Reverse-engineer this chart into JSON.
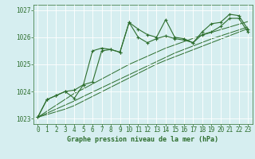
{
  "title": "Graphe pression niveau de la mer (hPa)",
  "bg_color": "#cce8ec",
  "grid_color": "#b0d8dc",
  "plot_bg_color": "#d6eef0",
  "line_color": "#2d6e2d",
  "marker_color": "#2d6e2d",
  "label_color": "#2d6e2d",
  "x_ticks": [
    0,
    1,
    2,
    3,
    4,
    5,
    6,
    7,
    8,
    9,
    10,
    11,
    12,
    13,
    14,
    15,
    16,
    17,
    18,
    19,
    20,
    21,
    22,
    23
  ],
  "ylim": [
    1022.8,
    1027.2
  ],
  "xlim": [
    -0.5,
    23.5
  ],
  "y_ticks": [
    1023,
    1024,
    1025,
    1026,
    1027
  ],
  "series": {
    "main": [
      1023.05,
      1023.7,
      1023.85,
      1024.0,
      1024.05,
      1024.25,
      1025.5,
      1025.6,
      1025.55,
      1025.45,
      1026.55,
      1026.3,
      1026.1,
      1026.0,
      1026.65,
      1026.0,
      1025.95,
      1025.8,
      1026.2,
      1026.5,
      1026.55,
      1026.85,
      1026.8,
      1026.3
    ],
    "line1": [
      1023.05,
      1023.7,
      1023.85,
      1024.0,
      1023.75,
      1024.25,
      1024.35,
      1025.5,
      1025.55,
      1025.45,
      1026.55,
      1026.0,
      1025.8,
      1025.95,
      1026.05,
      1025.95,
      1025.9,
      1025.8,
      1026.1,
      1026.2,
      1026.4,
      1026.7,
      1026.7,
      1026.2
    ],
    "trend1": [
      1023.05,
      1023.27,
      1023.49,
      1023.71,
      1023.93,
      1024.1,
      1024.28,
      1024.46,
      1024.64,
      1024.82,
      1025.0,
      1025.15,
      1025.3,
      1025.45,
      1025.6,
      1025.72,
      1025.84,
      1025.96,
      1026.08,
      1026.18,
      1026.28,
      1026.38,
      1026.48,
      1026.58
    ],
    "trend2": [
      1023.05,
      1023.2,
      1023.35,
      1023.5,
      1023.65,
      1023.82,
      1023.98,
      1024.14,
      1024.3,
      1024.46,
      1024.62,
      1024.78,
      1024.94,
      1025.1,
      1025.26,
      1025.42,
      1025.55,
      1025.68,
      1025.81,
      1025.94,
      1026.05,
      1026.16,
      1026.27,
      1026.38
    ],
    "trend3": [
      1023.05,
      1023.15,
      1023.25,
      1023.35,
      1023.48,
      1023.65,
      1023.82,
      1023.99,
      1024.16,
      1024.33,
      1024.5,
      1024.67,
      1024.84,
      1025.01,
      1025.15,
      1025.28,
      1025.41,
      1025.54,
      1025.67,
      1025.8,
      1025.93,
      1026.06,
      1026.19,
      1026.32
    ]
  },
  "xlabel_fontsize": 5.5,
  "ylabel_fontsize": 5.5,
  "title_fontsize": 6.0,
  "figsize": [
    3.2,
    2.0
  ],
  "dpi": 100
}
